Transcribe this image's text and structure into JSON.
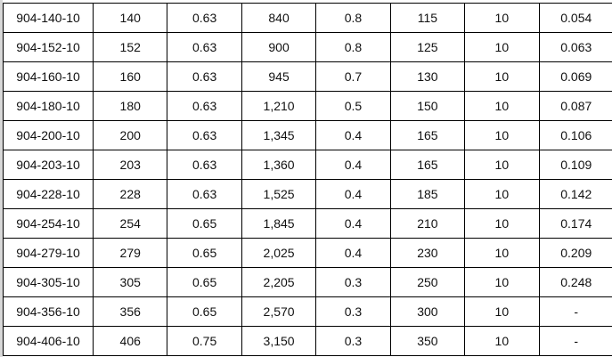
{
  "table": {
    "rows": [
      [
        "904-140-10",
        "140",
        "0.63",
        "840",
        "0.8",
        "115",
        "10",
        "0.054"
      ],
      [
        "904-152-10",
        "152",
        "0.63",
        "900",
        "0.8",
        "125",
        "10",
        "0.063"
      ],
      [
        "904-160-10",
        "160",
        "0.63",
        "945",
        "0.7",
        "130",
        "10",
        "0.069"
      ],
      [
        "904-180-10",
        "180",
        "0.63",
        "1,210",
        "0.5",
        "150",
        "10",
        "0.087"
      ],
      [
        "904-200-10",
        "200",
        "0.63",
        "1,345",
        "0.4",
        "165",
        "10",
        "0.106"
      ],
      [
        "904-203-10",
        "203",
        "0.63",
        "1,360",
        "0.4",
        "165",
        "10",
        "0.109"
      ],
      [
        "904-228-10",
        "228",
        "0.63",
        "1,525",
        "0.4",
        "185",
        "10",
        "0.142"
      ],
      [
        "904-254-10",
        "254",
        "0.65",
        "1,845",
        "0.4",
        "210",
        "10",
        "0.174"
      ],
      [
        "904-279-10",
        "279",
        "0.65",
        "2,025",
        "0.4",
        "230",
        "10",
        "0.209"
      ],
      [
        "904-305-10",
        "305",
        "0.65",
        "2,205",
        "0.3",
        "250",
        "10",
        "0.248"
      ],
      [
        "904-356-10",
        "356",
        "0.65",
        "2,570",
        "0.3",
        "300",
        "10",
        "-"
      ],
      [
        "904-406-10",
        "406",
        "0.75",
        "3,150",
        "0.3",
        "350",
        "10",
        "-"
      ]
    ]
  }
}
